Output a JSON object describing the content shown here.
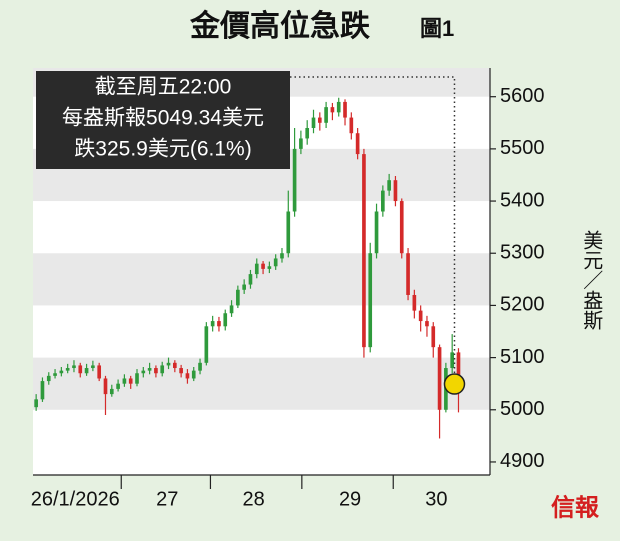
{
  "chart_data": {
    "type": "candlestick",
    "title": "金價高位急跌",
    "subtitle": "圖1",
    "ylabel": "美元／盎斯",
    "annotation": [
      "截至周五22:00",
      "每盎斯報5049.34美元",
      "跌325.9美元(6.1%)"
    ],
    "source_logo": "信報",
    "ylim": [
      4875,
      5655
    ],
    "yticks": [
      4900,
      5000,
      5100,
      5200,
      5300,
      5400,
      5500,
      5600
    ],
    "xlim": [
      0,
      72.5
    ],
    "xticks": [
      {
        "value": 6.7,
        "label": "26/1/2026"
      },
      {
        "value": 21.3,
        "label": "27"
      },
      {
        "value": 35,
        "label": "28"
      },
      {
        "value": 50.3,
        "label": "29"
      },
      {
        "value": 64,
        "label": "30"
      }
    ],
    "up_color": "#2f9a3c",
    "down_color": "#d42a2a",
    "marker_color": "#f2d600",
    "open": [
      5005,
      5020,
      5055,
      5065,
      5070,
      5075,
      5080,
      5085,
      5070,
      5080,
      5085,
      5060,
      5030,
      5040,
      5050,
      5060,
      5050,
      5070,
      5075,
      5080,
      5070,
      5085,
      5090,
      5080,
      5070,
      5060,
      5075,
      5090,
      5160,
      5170,
      5160,
      5185,
      5200,
      5230,
      5240,
      5260,
      5280,
      5270,
      5275,
      5290,
      5300,
      5380,
      5500,
      5520,
      5540,
      5560,
      5550,
      5580,
      5570,
      5590,
      5560,
      5530,
      5490,
      5120,
      5300,
      5380,
      5420,
      5440,
      5400,
      5300,
      5220,
      5190,
      5170,
      5160,
      5120,
      5000,
      5080,
      5110
    ],
    "high": [
      5030,
      5062,
      5072,
      5078,
      5082,
      5088,
      5095,
      5090,
      5088,
      5094,
      5090,
      5065,
      5048,
      5058,
      5068,
      5065,
      5078,
      5082,
      5090,
      5085,
      5092,
      5100,
      5095,
      5086,
      5078,
      5082,
      5098,
      5168,
      5180,
      5178,
      5192,
      5210,
      5238,
      5250,
      5268,
      5290,
      5285,
      5284,
      5298,
      5310,
      5420,
      5540,
      5535,
      5555,
      5575,
      5570,
      5590,
      5588,
      5598,
      5595,
      5570,
      5540,
      5500,
      5320,
      5395,
      5430,
      5452,
      5448,
      5405,
      5310,
      5230,
      5200,
      5180,
      5168,
      5125,
      5090,
      5145,
      5118
    ],
    "low": [
      4998,
      5015,
      5048,
      5060,
      5064,
      5070,
      5072,
      5062,
      5065,
      5074,
      5055,
      4990,
      5025,
      5035,
      5044,
      5040,
      5045,
      5062,
      5068,
      5062,
      5064,
      5078,
      5072,
      5062,
      5050,
      5055,
      5068,
      5085,
      5150,
      5150,
      5152,
      5178,
      5195,
      5222,
      5232,
      5252,
      5260,
      5262,
      5268,
      5282,
      5292,
      5370,
      5490,
      5508,
      5530,
      5535,
      5540,
      5555,
      5562,
      5545,
      5518,
      5480,
      5100,
      5110,
      5290,
      5370,
      5410,
      5390,
      5290,
      5210,
      5175,
      5150,
      5140,
      5100,
      4945,
      4995,
      5070,
      4995
    ],
    "close": [
      5020,
      5055,
      5065,
      5070,
      5075,
      5080,
      5085,
      5070,
      5080,
      5085,
      5060,
      5030,
      5040,
      5050,
      5060,
      5050,
      5070,
      5075,
      5080,
      5070,
      5085,
      5090,
      5080,
      5070,
      5060,
      5075,
      5090,
      5160,
      5170,
      5160,
      5185,
      5200,
      5230,
      5240,
      5260,
      5280,
      5270,
      5275,
      5290,
      5300,
      5380,
      5500,
      5520,
      5540,
      5560,
      5550,
      5580,
      5570,
      5590,
      5560,
      5530,
      5490,
      5120,
      5300,
      5380,
      5420,
      5440,
      5400,
      5300,
      5220,
      5190,
      5170,
      5160,
      5120,
      5000,
      5080,
      5110,
      5049.34
    ]
  }
}
